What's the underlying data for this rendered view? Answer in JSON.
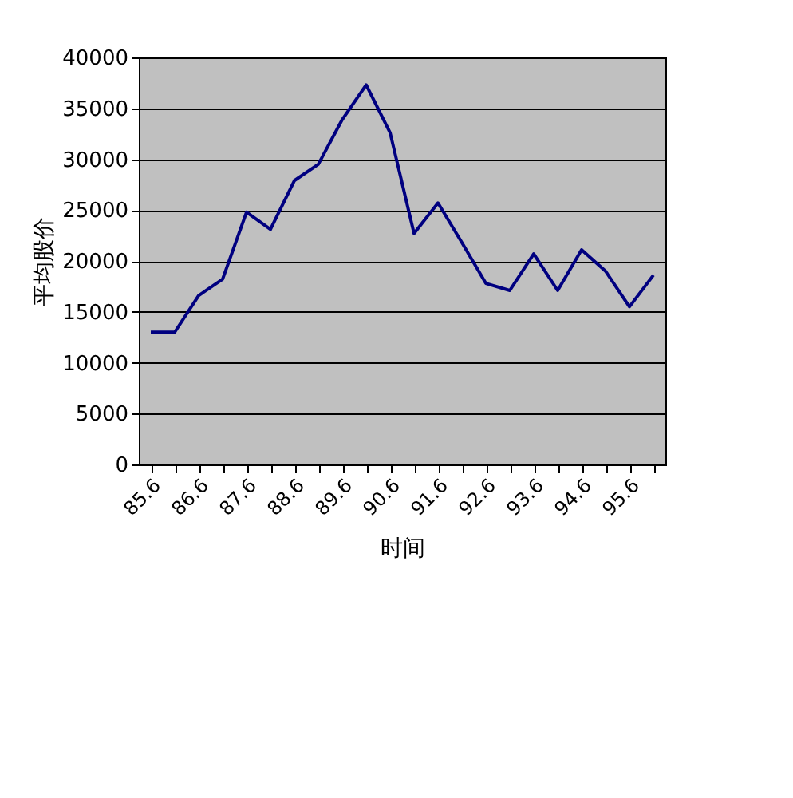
{
  "chart_data": {
    "type": "line",
    "xlabel": "时间",
    "ylabel": "平均股价",
    "categories": [
      "85.6",
      null,
      "86.6",
      null,
      "87.6",
      null,
      "88.6",
      null,
      "89.6",
      null,
      "90.6",
      null,
      "91.6",
      null,
      "92.6",
      null,
      "93.6",
      null,
      "94.6",
      null,
      "95.6",
      null
    ],
    "series": [
      {
        "color": "#000080",
        "values": [
          13000,
          13000,
          16600,
          18200,
          24800,
          23100,
          27900,
          29500,
          33900,
          37300,
          32600,
          22700,
          25700,
          21800,
          17800,
          17100,
          20700,
          17100,
          21100,
          19000,
          15500,
          18600
        ]
      }
    ],
    "ylim": [
      0,
      40000
    ],
    "yticks": [
      0,
      5000,
      10000,
      15000,
      20000,
      25000,
      30000,
      35000,
      40000
    ],
    "grid": "y",
    "marker": "none"
  }
}
